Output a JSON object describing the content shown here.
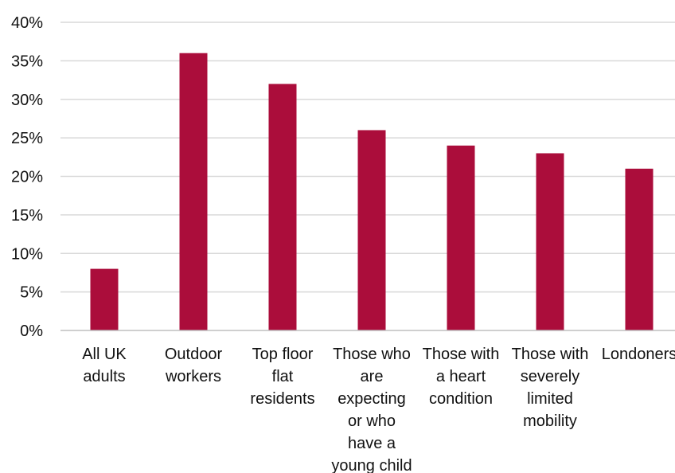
{
  "chart_data": {
    "type": "bar",
    "title": "",
    "xlabel": "",
    "ylabel": "",
    "ylim": [
      0,
      40
    ],
    "y_tick_step": 5,
    "y_tick_labels": [
      "0%",
      "5%",
      "10%",
      "15%",
      "20%",
      "25%",
      "30%",
      "35%",
      "40%"
    ],
    "grid": true,
    "categories": [
      [
        "All UK",
        "adults"
      ],
      [
        "Outdoor",
        "workers"
      ],
      [
        "Top floor",
        "flat",
        "residents"
      ],
      [
        "Those who",
        "are",
        "expecting",
        "or who",
        "have a",
        "young child"
      ],
      [
        "Those with",
        "a heart",
        "condition"
      ],
      [
        "Those with",
        "severely",
        "limited",
        "mobility"
      ],
      [
        "Londoners"
      ]
    ],
    "values": [
      8,
      36,
      32,
      26,
      24,
      23,
      21
    ],
    "colors": {
      "bar": "#AB0D3B",
      "grid": "#D9D9D9",
      "axis": "#BFBFBF",
      "text": "#111111"
    }
  }
}
